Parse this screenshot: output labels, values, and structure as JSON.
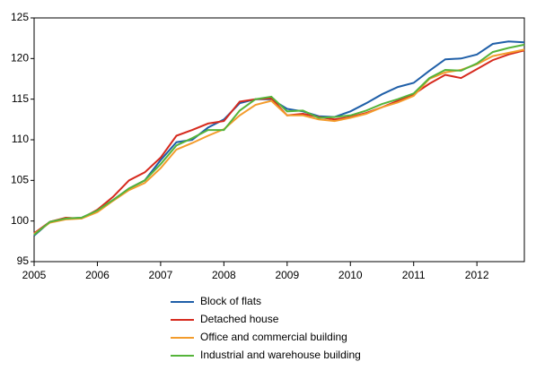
{
  "chart_data": {
    "type": "line",
    "x": [
      2005,
      2005.25,
      2005.5,
      2005.75,
      2006,
      2006.25,
      2006.5,
      2006.75,
      2007,
      2007.25,
      2007.5,
      2007.75,
      2008,
      2008.25,
      2008.5,
      2008.75,
      2009,
      2009.25,
      2009.5,
      2009.75,
      2010,
      2010.25,
      2010.5,
      2010.75,
      2011,
      2011.25,
      2011.5,
      2011.75,
      2012,
      2012.25,
      2012.5,
      2012.75
    ],
    "series": [
      {
        "name": "Block of flats",
        "color": "#1f5fa8",
        "values": [
          98.2,
          99.9,
          100.3,
          100.4,
          101.3,
          102.6,
          104.0,
          105.0,
          107.5,
          109.7,
          110.0,
          111.5,
          112.5,
          114.5,
          115.0,
          115.0,
          113.8,
          113.5,
          112.9,
          112.8,
          113.5,
          114.5,
          115.6,
          116.5,
          117.0,
          118.5,
          119.9,
          120.0,
          120.5,
          121.8,
          122.1,
          122.0
        ]
      },
      {
        "name": "Detached house",
        "color": "#d62a1e",
        "values": [
          98.5,
          99.9,
          100.4,
          100.3,
          101.4,
          103.0,
          105.0,
          106.0,
          107.8,
          110.5,
          111.2,
          112.0,
          112.3,
          114.7,
          115.0,
          115.1,
          113.0,
          113.2,
          112.8,
          112.5,
          112.8,
          113.3,
          114.0,
          114.8,
          115.6,
          116.9,
          118.0,
          117.6,
          118.7,
          119.8,
          120.5,
          121.0
        ]
      },
      {
        "name": "Office and commercial building",
        "color": "#f39c2c",
        "values": [
          98.4,
          99.8,
          100.2,
          100.3,
          101.1,
          102.5,
          103.8,
          104.7,
          106.5,
          108.8,
          109.6,
          110.5,
          111.3,
          113.0,
          114.3,
          114.8,
          113.0,
          113.0,
          112.5,
          112.3,
          112.7,
          113.2,
          114.0,
          114.6,
          115.4,
          117.5,
          118.3,
          118.6,
          119.3,
          120.3,
          120.7,
          121.1
        ]
      },
      {
        "name": "Industrial and warehouse  building",
        "color": "#55b43a",
        "values": [
          98.3,
          99.9,
          100.3,
          100.4,
          101.3,
          102.6,
          104.0,
          105.0,
          107.0,
          109.3,
          110.2,
          111.2,
          111.2,
          113.6,
          115.0,
          115.3,
          113.5,
          113.6,
          112.7,
          112.8,
          113.0,
          113.6,
          114.4,
          115.0,
          115.7,
          117.6,
          118.6,
          118.5,
          119.4,
          120.8,
          121.3,
          121.7
        ]
      }
    ],
    "xlim": [
      2005,
      2012.75
    ],
    "xticks": [
      2005,
      2006,
      2007,
      2008,
      2009,
      2010,
      2011,
      2012
    ],
    "ylim": [
      95,
      125
    ],
    "yticks": [
      95,
      100,
      105,
      110,
      115,
      120,
      125
    ],
    "grid": false
  }
}
